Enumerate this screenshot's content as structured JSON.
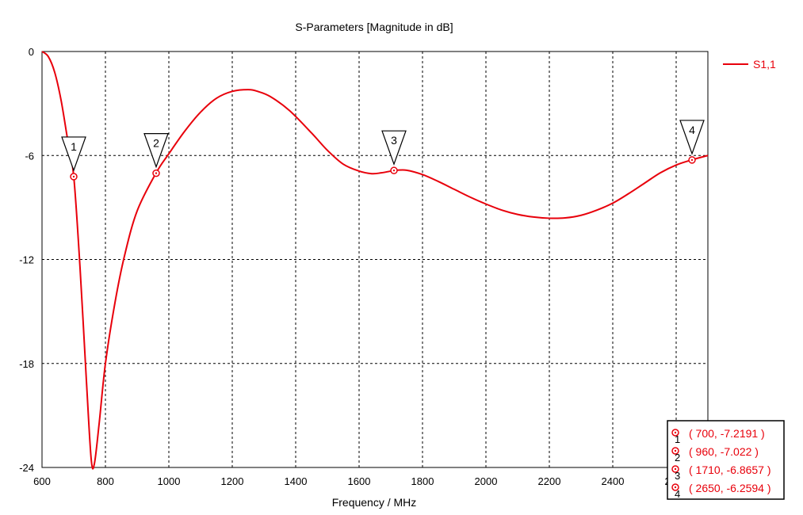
{
  "chart_data": {
    "type": "line",
    "title": "S-Parameters [Magnitude in dB]",
    "xlabel": "Frequency / MHz",
    "ylabel": "",
    "xlim": [
      600,
      2700
    ],
    "ylim": [
      -24,
      0
    ],
    "xticks": [
      600,
      800,
      1000,
      1200,
      1400,
      1600,
      1800,
      2000,
      2200,
      2400,
      2600
    ],
    "yticks": [
      0,
      -6,
      -12,
      -18,
      -24
    ],
    "grid": true,
    "legend_position": "top-right",
    "series": [
      {
        "name": "S1,1",
        "color": "#e8000b",
        "x": [
          600,
          620,
          640,
          660,
          680,
          700,
          720,
          740,
          755,
          765,
          780,
          800,
          830,
          860,
          900,
          960,
          1000,
          1050,
          1100,
          1150,
          1200,
          1250,
          1280,
          1320,
          1380,
          1450,
          1500,
          1550,
          1600,
          1640,
          1670,
          1700,
          1720,
          1750,
          1800,
          1850,
          1900,
          1950,
          2000,
          2050,
          2100,
          2150,
          2200,
          2250,
          2300,
          2350,
          2400,
          2450,
          2500,
          2550,
          2600,
          2650,
          2700
        ],
        "y": [
          0.0,
          -0.3,
          -1.2,
          -2.8,
          -5.0,
          -7.2,
          -12.5,
          -19.0,
          -23.5,
          -23.8,
          -21.5,
          -18.0,
          -14.5,
          -11.8,
          -9.2,
          -7.0,
          -5.9,
          -4.6,
          -3.5,
          -2.7,
          -2.3,
          -2.2,
          -2.3,
          -2.6,
          -3.4,
          -4.7,
          -5.7,
          -6.5,
          -6.9,
          -7.05,
          -7.0,
          -6.9,
          -6.85,
          -6.85,
          -7.1,
          -7.5,
          -7.95,
          -8.4,
          -8.8,
          -9.15,
          -9.4,
          -9.55,
          -9.62,
          -9.6,
          -9.45,
          -9.15,
          -8.75,
          -8.2,
          -7.6,
          -7.0,
          -6.55,
          -6.25,
          -6.0
        ]
      }
    ],
    "markers": [
      {
        "id": "1",
        "x": 700,
        "y": -7.2191,
        "label": "( 700, -7.2191 )"
      },
      {
        "id": "2",
        "x": 960,
        "y": -7.022,
        "label": "( 960, -7.022 )"
      },
      {
        "id": "3",
        "x": 1710,
        "y": -6.8657,
        "label": "( 1710, -6.8657 )"
      },
      {
        "id": "4",
        "x": 2650,
        "y": -6.2594,
        "label": "( 2650, -6.2594 )"
      }
    ]
  }
}
